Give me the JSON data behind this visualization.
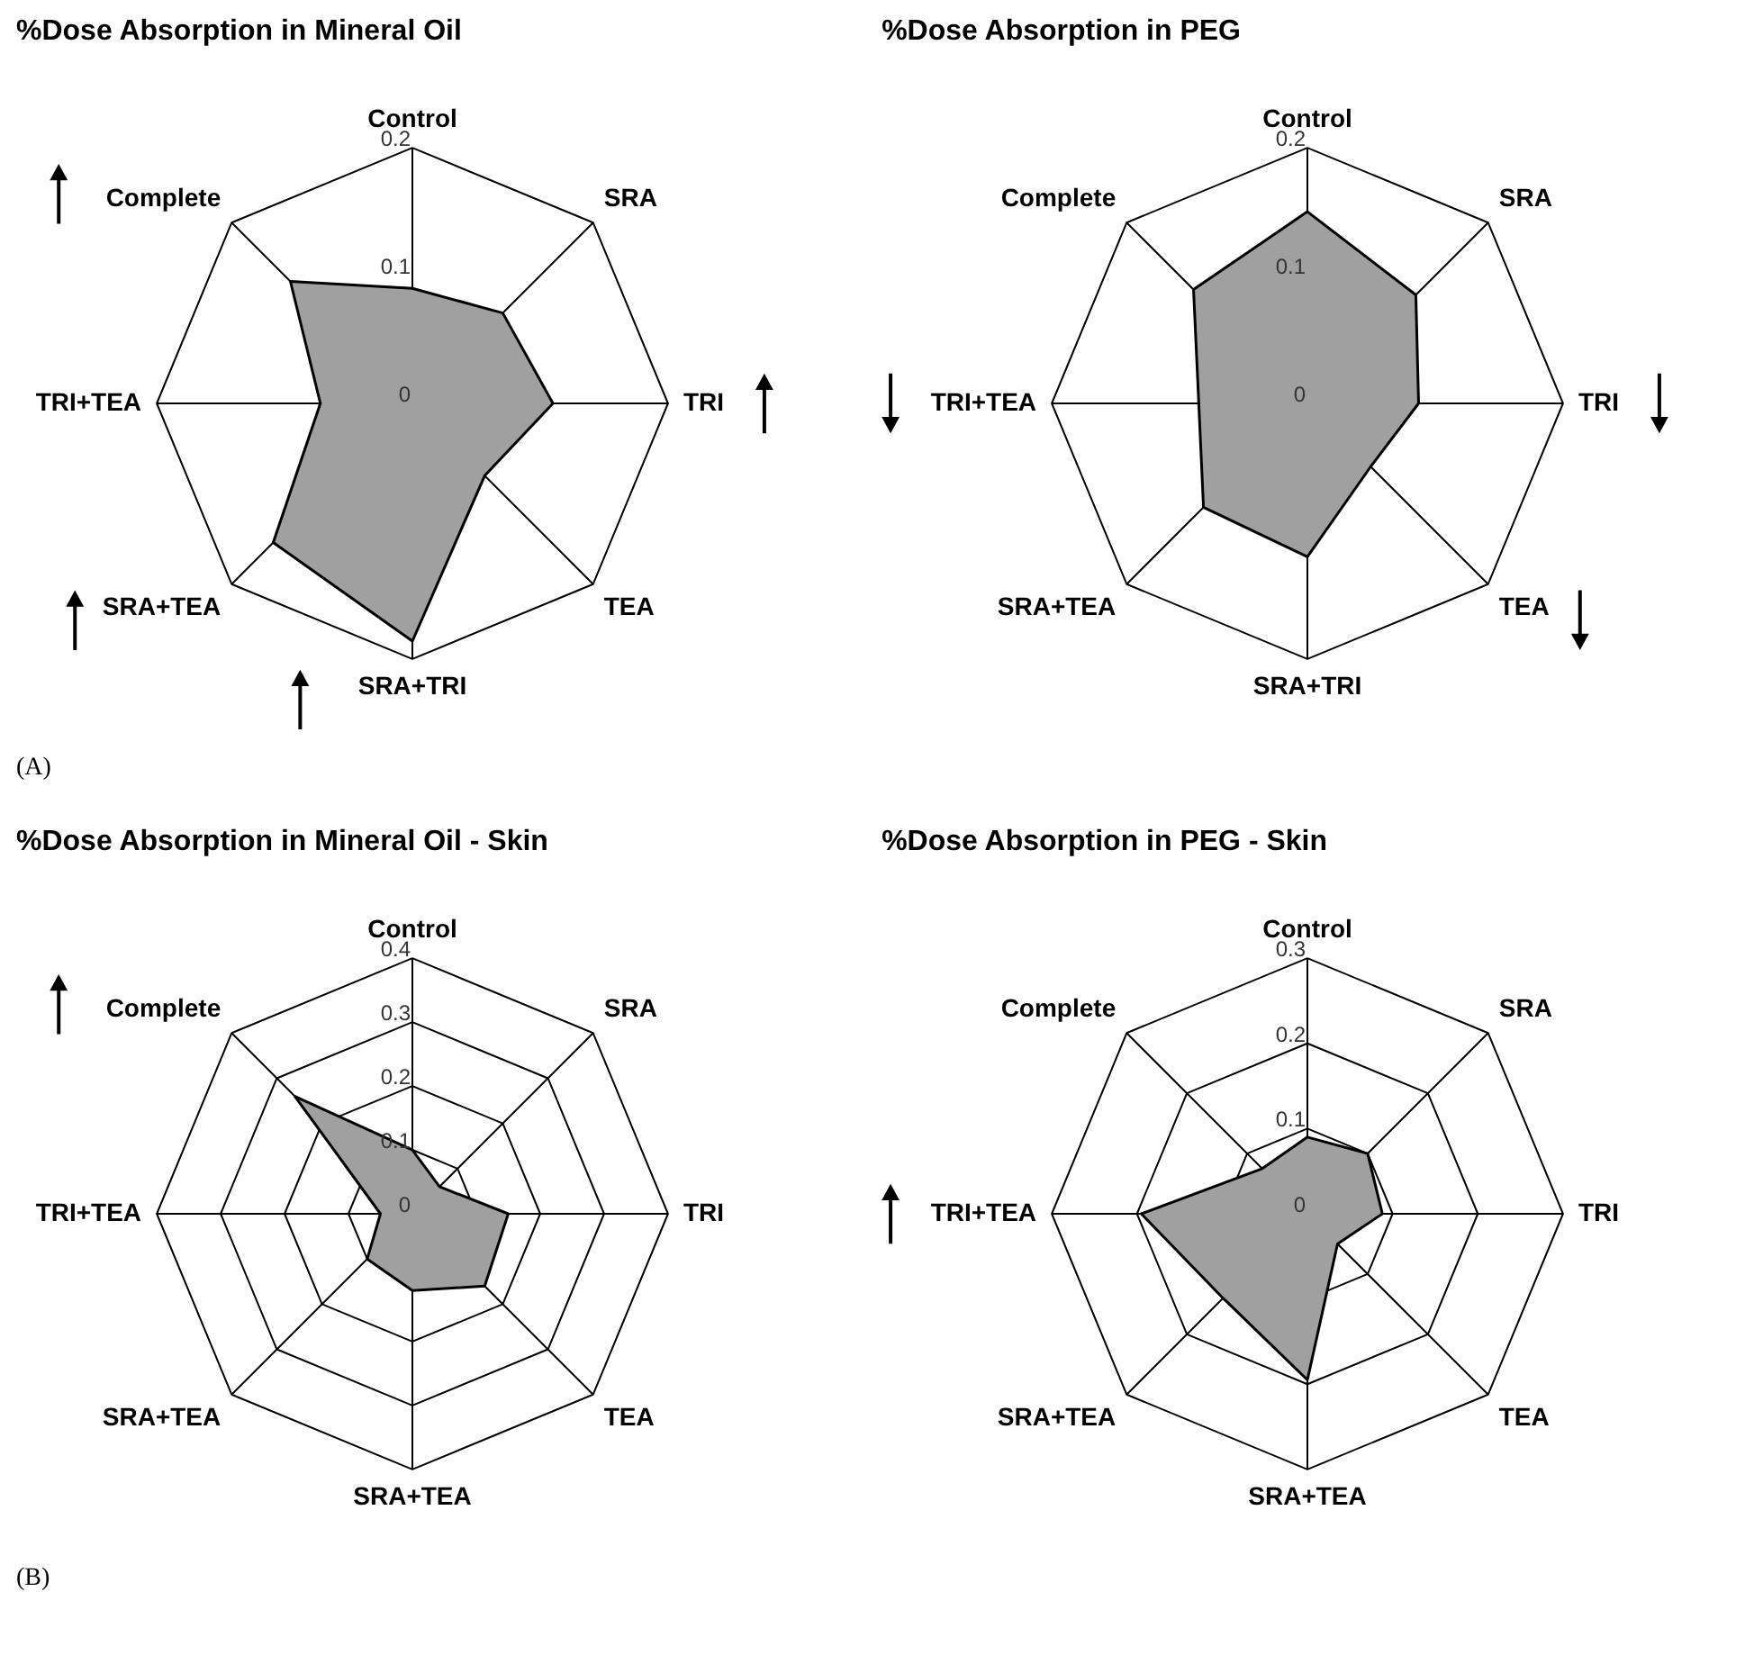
{
  "chart_data": [
    {
      "type": "radar",
      "title": "%Dose Absorption in Mineral Oil",
      "categories": [
        "Control",
        "SRA",
        "TRI",
        "TEA",
        "SRA+TRI",
        "SRA+TEA",
        "TRI+TEA",
        "Complete"
      ],
      "series": [
        {
          "color": "#a0a0a0",
          "values": [
            0.09,
            0.1,
            0.11,
            0.08,
            0.186,
            0.154,
            0.072,
            0.135
          ]
        }
      ],
      "ylim": [
        0,
        0.2
      ],
      "yticks": [
        0,
        0.1,
        0.2
      ],
      "annotations": [
        "(A)"
      ]
    },
    {
      "type": "radar",
      "title": "%Dose Absorption in PEG",
      "categories": [
        "Control",
        "SRA",
        "TRI",
        "TEA",
        "SRA+TRI",
        "SRA+TEA",
        "TRI+TEA",
        "Complete"
      ],
      "series": [
        {
          "color": "#a0a0a0",
          "values": [
            0.15,
            0.12,
            0.087,
            0.07,
            0.12,
            0.115,
            0.085,
            0.126
          ]
        }
      ],
      "ylim": [
        0,
        0.2
      ],
      "yticks": [
        0,
        0.1,
        0.2
      ]
    },
    {
      "type": "radar",
      "title": "%Dose Absorption in Mineral Oil - Skin",
      "categories": [
        "Control",
        "SRA",
        "TRI",
        "TEA",
        "SRA+TEA",
        "SRA+TEA",
        "TRI+TEA",
        "Complete"
      ],
      "series": [
        {
          "color": "#a0a0a0",
          "values": [
            0.1,
            0.06,
            0.15,
            0.16,
            0.12,
            0.1,
            0.05,
            0.26
          ]
        }
      ],
      "ylim": [
        0,
        0.4
      ],
      "yticks": [
        0,
        0.1,
        0.2,
        0.3,
        0.4
      ],
      "grid": true,
      "annotations": [
        "(B)"
      ]
    },
    {
      "type": "radar",
      "title": "%Dose Absorption in PEG - Skin",
      "categories": [
        "Control",
        "SRA",
        "TRI",
        "TEA",
        "SRA+TEA",
        "SRA+TEA",
        "TRI+TEA",
        "Complete"
      ],
      "series": [
        {
          "color": "#a0a0a0",
          "values": [
            0.09,
            0.1,
            0.088,
            0.05,
            0.195,
            0.14,
            0.195,
            0.075
          ]
        }
      ],
      "ylim": [
        0,
        0.3
      ],
      "yticks": [
        0,
        0.1,
        0.2,
        0.3
      ],
      "grid": true
    }
  ]
}
